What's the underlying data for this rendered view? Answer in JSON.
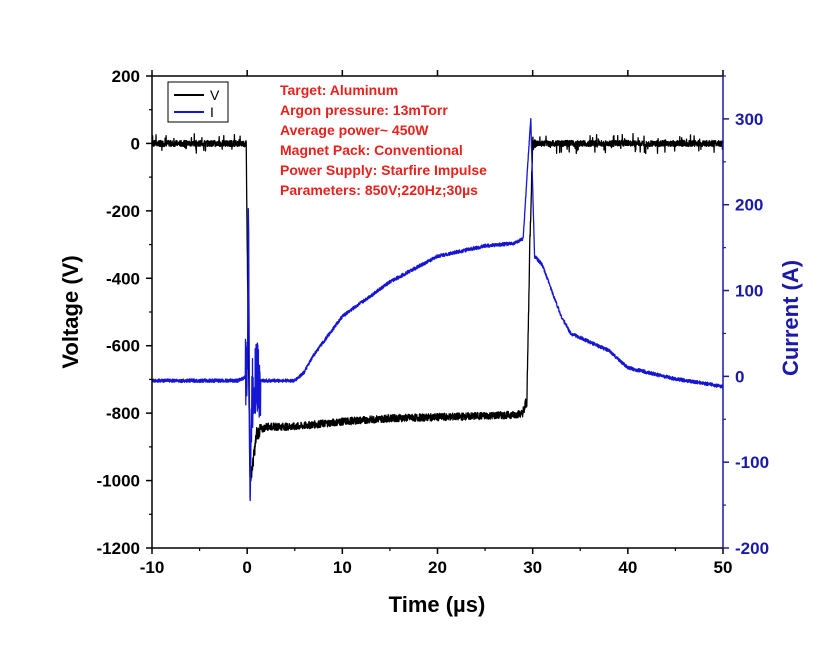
{
  "chart_data": {
    "type": "line",
    "xlabel": "Time (µs)",
    "ylabel": "Voltage (V)",
    "y2label": "Current (A)",
    "xlim": [
      -10,
      50
    ],
    "ylim": [
      -1200,
      200
    ],
    "y2lim": [
      -200,
      350
    ],
    "x_ticks": [
      -10,
      0,
      10,
      20,
      30,
      40,
      50
    ],
    "y_ticks": [
      200,
      0,
      -200,
      -400,
      -600,
      -800,
      -1000,
      -1200
    ],
    "y2_ticks": [
      300,
      200,
      100,
      0,
      -100,
      -200
    ],
    "grid": false,
    "legend_position": "top-left",
    "axis_color_right": "#1a1aa6",
    "legend": [
      {
        "label": "V",
        "color": "#000000"
      },
      {
        "label": "I",
        "color": "#1515d4"
      }
    ],
    "annotations": [
      "Target: Aluminum",
      "Argon pressure: 13mTorr",
      "Average power~ 450W",
      "Magnet Pack: Conventional",
      "Power Supply: Starfire Impulse",
      "Parameters: 850V;220Hz;30µs"
    ],
    "series": [
      {
        "name": "V",
        "axis": "left",
        "color": "#000000",
        "x": [
          -10,
          -0.1,
          0,
          0.3,
          0.6,
          1,
          2,
          5,
          10,
          15,
          20,
          25,
          28,
          29,
          29.4,
          29.7,
          30,
          30.5,
          35,
          40,
          45,
          50
        ],
        "y": [
          0,
          0,
          -300,
          -1000,
          -950,
          -860,
          -840,
          -840,
          -825,
          -815,
          -812,
          -808,
          -805,
          -800,
          -760,
          -300,
          0,
          0,
          0,
          0,
          0,
          0
        ]
      },
      {
        "name": "I",
        "axis": "right",
        "color": "#1515d4",
        "x": [
          -10,
          -1,
          0,
          0.15,
          0.3,
          0.5,
          0.8,
          1.2,
          2,
          5,
          6,
          7,
          10,
          15,
          20,
          25,
          28,
          29,
          29.5,
          29.8,
          30.2,
          31,
          32,
          33,
          34,
          36,
          38,
          40,
          45,
          48,
          50
        ],
        "y": [
          -5,
          -5,
          0,
          190,
          -140,
          -30,
          0,
          -5,
          -5,
          -5,
          5,
          25,
          70,
          110,
          140,
          152,
          155,
          160,
          250,
          300,
          140,
          130,
          100,
          70,
          50,
          40,
          30,
          10,
          -3,
          -8,
          -12
        ]
      }
    ]
  }
}
